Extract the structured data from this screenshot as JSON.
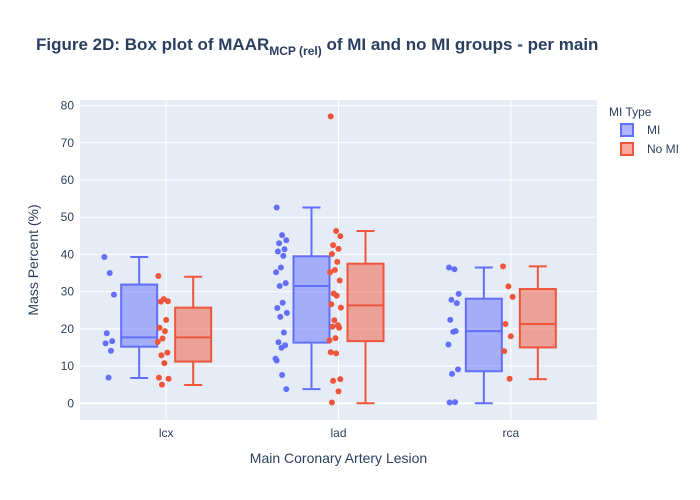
{
  "chart_data": {
    "type": "box",
    "title": {
      "prefix": "Figure 2D: Box plot of MAAR",
      "subscript": "MCP (rel)",
      "suffix": " of MI and no MI groups - per main"
    },
    "xlabel": "Main Coronary Artery Lesion",
    "ylabel": "Mass Percent (%)",
    "ylim": [
      -4.5,
      81.5
    ],
    "yticks": [
      0,
      10,
      20,
      30,
      40,
      50,
      60,
      70,
      80
    ],
    "categories": [
      "lcx",
      "lad",
      "rca"
    ],
    "grid": true,
    "legend": {
      "title": "MI Type",
      "position": "top-right"
    },
    "series": [
      {
        "name": "MI",
        "color": "#636efa",
        "boxes": [
          {
            "category": "lcx",
            "min": 6.8,
            "q1": 15.2,
            "median": 17.7,
            "q3": 31.9,
            "max": 39.3
          },
          {
            "category": "lad",
            "min": 3.8,
            "q1": 16.3,
            "median": 31.5,
            "q3": 39.5,
            "max": 52.6
          },
          {
            "category": "rca",
            "min": 0,
            "q1": 8.6,
            "median": 19.4,
            "q3": 28.1,
            "max": 36.5
          }
        ],
        "points": [
          {
            "category": "lcx",
            "values": [
              39.3,
              35.0,
              29.2,
              18.8,
              16.7,
              16.1,
              14.1,
              6.9
            ]
          },
          {
            "category": "lad",
            "values": [
              52.6,
              45.2,
              43.8,
              43.0,
              41.4,
              40.8,
              39.6,
              36.5,
              35.2,
              32.3,
              31.5,
              27.0,
              25.6,
              24.3,
              23.2,
              19.0,
              16.4,
              15.6,
              14.9,
              12.0,
              11.5,
              7.6,
              3.8
            ]
          },
          {
            "category": "rca",
            "values": [
              36.5,
              36.0,
              29.4,
              27.8,
              26.9,
              22.4,
              19.4,
              19.2,
              15.8,
              9.1,
              7.9,
              0.3,
              0.2
            ]
          }
        ]
      },
      {
        "name": "No MI",
        "color": "#ef553b",
        "boxes": [
          {
            "category": "lcx",
            "min": 4.9,
            "q1": 11.2,
            "median": 17.7,
            "q3": 25.7,
            "max": 34.0
          },
          {
            "category": "lad",
            "min": 0,
            "q1": 16.7,
            "median": 26.3,
            "q3": 37.5,
            "max": 46.3
          },
          {
            "category": "rca",
            "min": 6.5,
            "q1": 15.0,
            "median": 21.3,
            "q3": 30.7,
            "max": 36.8
          }
        ],
        "points": [
          {
            "category": "lcx",
            "values": [
              34.2,
              28.0,
              27.4,
              27.3,
              22.4,
              20.3,
              19.4,
              17.4,
              16.5,
              13.6,
              12.9,
              10.8,
              6.9,
              6.6,
              5.0
            ]
          },
          {
            "category": "lad",
            "values": [
              77.1,
              46.3,
              44.9,
              42.5,
              41.5,
              40.1,
              38.0,
              35.8,
              35.2,
              33.0,
              29.5,
              28.9,
              26.6,
              25.7,
              22.3,
              21.0,
              20.6,
              20.3,
              17.5,
              16.9,
              13.7,
              13.4,
              6.5,
              6.0,
              3.2,
              0.2
            ]
          },
          {
            "category": "rca",
            "values": [
              36.8,
              31.4,
              28.6,
              21.3,
              18.0,
              14.0,
              6.6
            ]
          }
        ]
      }
    ]
  }
}
